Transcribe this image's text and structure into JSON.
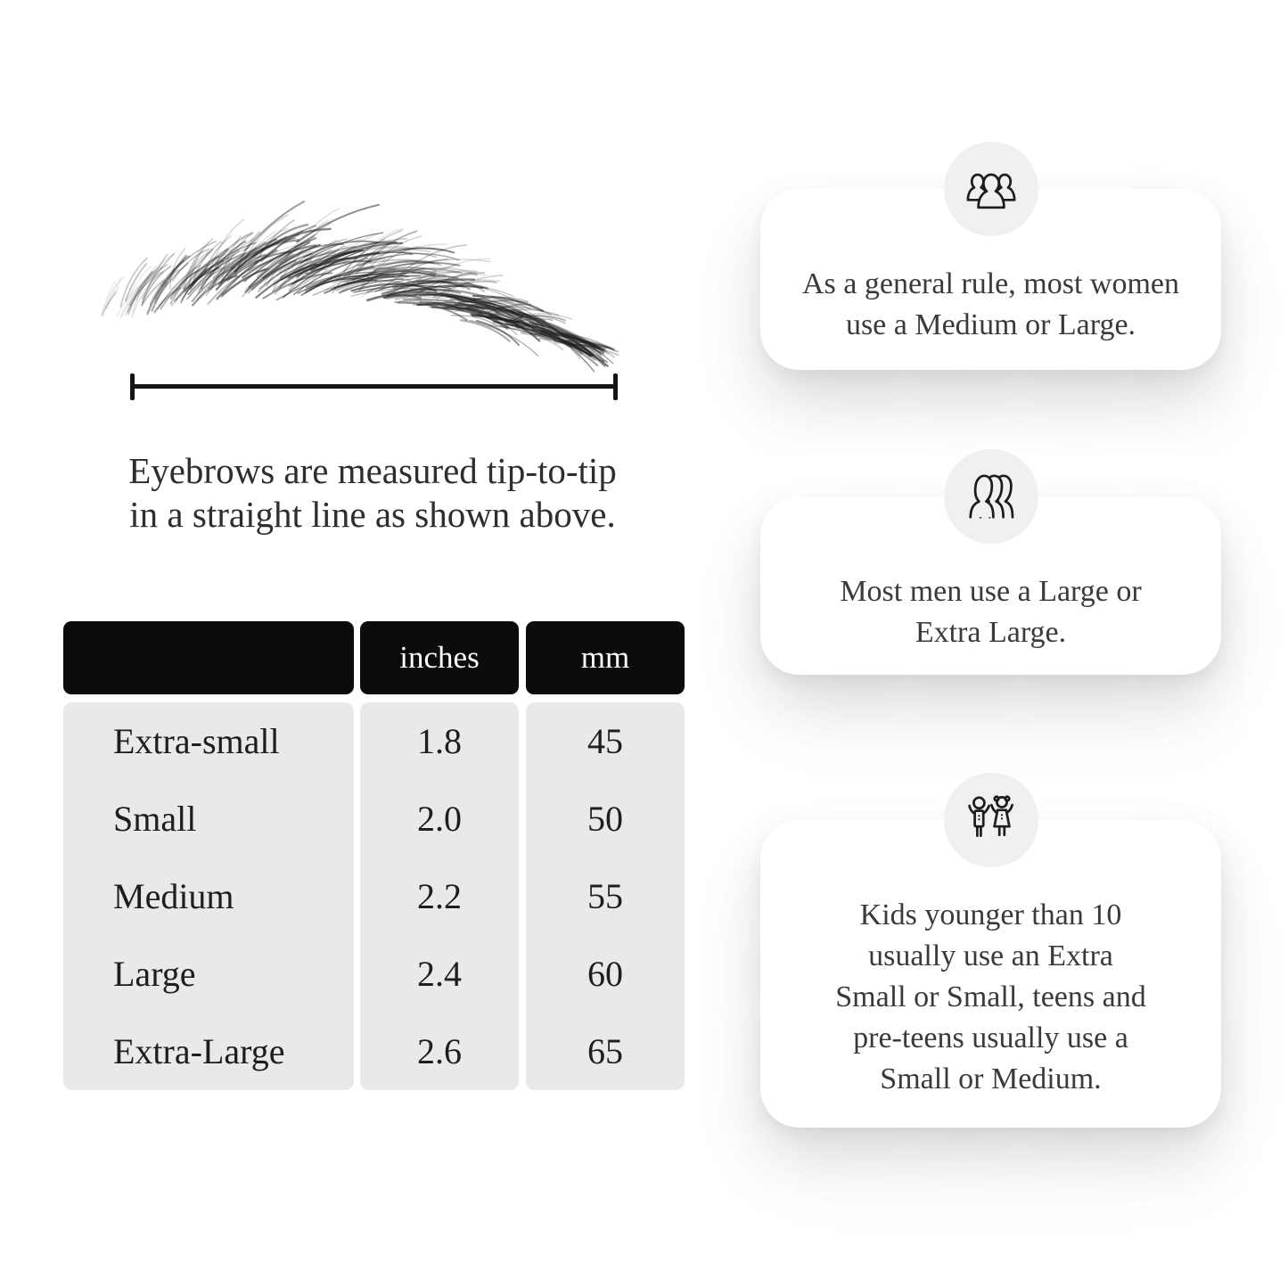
{
  "page": {
    "background": "#ffffff",
    "text_color": "#2e2e2e"
  },
  "measurement": {
    "caption_lines": [
      "Eyebrows are measured tip-to-tip",
      "in a straight line as shown above."
    ],
    "line_color": "#151515",
    "illustration": "eyebrow-sketch"
  },
  "size_table": {
    "headers": {
      "size": "",
      "inches": "inches",
      "mm": "mm"
    },
    "rows": [
      {
        "label": "Extra-small",
        "inches": "1.8",
        "mm": "45"
      },
      {
        "label": "Small",
        "inches": "2.0",
        "mm": "50"
      },
      {
        "label": "Medium",
        "inches": "2.2",
        "mm": "55"
      },
      {
        "label": "Large",
        "inches": "2.4",
        "mm": "60"
      },
      {
        "label": "Extra-Large",
        "inches": "2.6",
        "mm": "65"
      }
    ],
    "header_bg": "#0b0b0b",
    "header_text_color": "#ffffff",
    "body_bg": "#e9e9e9"
  },
  "info_cards": [
    {
      "icon": "women-group-icon",
      "lines": [
        "As a general rule, most women",
        "use a Medium or Large."
      ]
    },
    {
      "icon": "men-group-icon",
      "lines": [
        "Most men use a Large or",
        "Extra Large."
      ]
    },
    {
      "icon": "children-icon",
      "lines": [
        "Kids younger than 10",
        "usually use an Extra",
        "Small or Small, teens and",
        "pre-teens usually use a",
        "Small or Medium."
      ]
    }
  ],
  "card_style": {
    "background": "#ffffff",
    "icon_circle_bg": "#f0f0f0",
    "icon_stroke": "#1c1c1c"
  }
}
